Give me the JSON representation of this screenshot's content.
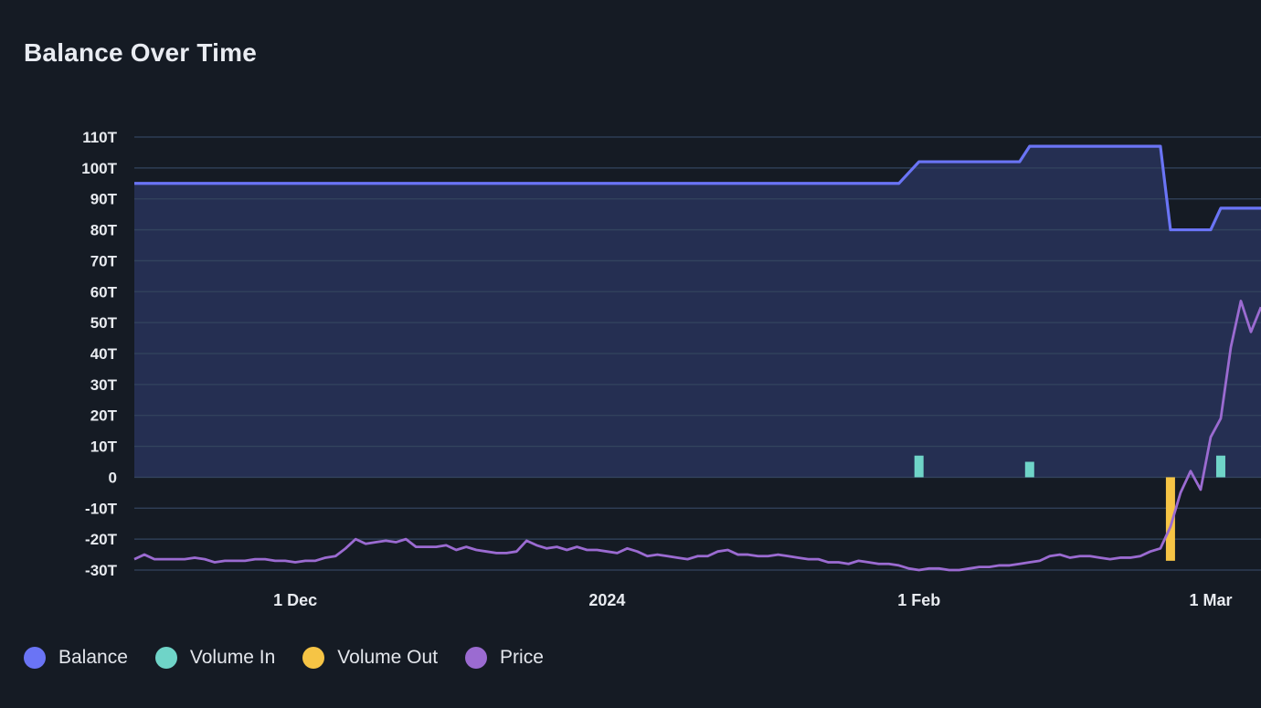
{
  "title": "Balance Over Time",
  "legend": [
    {
      "label": "Balance",
      "color": "#6a74f5"
    },
    {
      "label": "Volume In",
      "color": "#6fd4c8"
    },
    {
      "label": "Volume Out",
      "color": "#f6c445"
    },
    {
      "label": "Price",
      "color": "#9b6bd1"
    }
  ],
  "chart_data": {
    "type": "line",
    "title": "Balance Over Time",
    "xlabel": "",
    "ylabel": "",
    "ylim": [
      -30,
      110
    ],
    "y_ticks": [
      "110T",
      "100T",
      "90T",
      "80T",
      "70T",
      "60T",
      "50T",
      "40T",
      "30T",
      "20T",
      "10T",
      "0",
      "-10T",
      "-20T",
      "-30T"
    ],
    "x_ticks": [
      "1 Dec",
      "2024",
      "1 Feb",
      "1 Mar"
    ],
    "x_tick_dates": [
      "2023-12-01",
      "2024-01-01",
      "2024-02-01",
      "2024-03-01"
    ],
    "xlim": [
      "2023-11-15",
      "2024-03-06"
    ],
    "grid": true,
    "legend_position": "bottom-left",
    "series": [
      {
        "name": "Balance",
        "type": "area",
        "color": "#6a74f5",
        "points": [
          [
            "2023-11-15",
            95
          ],
          [
            "2024-01-30",
            95
          ],
          [
            "2024-02-01",
            102
          ],
          [
            "2024-02-11",
            102
          ],
          [
            "2024-02-12",
            107
          ],
          [
            "2024-02-25",
            107
          ],
          [
            "2024-02-26",
            80
          ],
          [
            "2024-03-01",
            80
          ],
          [
            "2024-03-02",
            87
          ],
          [
            "2024-03-06",
            87
          ]
        ]
      },
      {
        "name": "Volume In",
        "type": "bar",
        "color": "#6fd4c8",
        "points": [
          [
            "2024-02-01",
            7
          ],
          [
            "2024-02-12",
            5
          ],
          [
            "2024-03-02",
            7
          ]
        ]
      },
      {
        "name": "Volume Out",
        "type": "bar",
        "color": "#f6c445",
        "points": [
          [
            "2024-02-26",
            -27
          ]
        ]
      },
      {
        "name": "Price",
        "type": "line",
        "color": "#9b6bd1",
        "points": [
          [
            "2023-11-15",
            -26.5
          ],
          [
            "2023-11-16",
            -25
          ],
          [
            "2023-11-17",
            -26.5
          ],
          [
            "2023-11-18",
            -26.5
          ],
          [
            "2023-11-19",
            -26.5
          ],
          [
            "2023-11-20",
            -26.5
          ],
          [
            "2023-11-21",
            -26
          ],
          [
            "2023-11-22",
            -26.5
          ],
          [
            "2023-11-23",
            -27.5
          ],
          [
            "2023-11-24",
            -27
          ],
          [
            "2023-11-25",
            -27
          ],
          [
            "2023-11-26",
            -27
          ],
          [
            "2023-11-27",
            -26.5
          ],
          [
            "2023-11-28",
            -26.5
          ],
          [
            "2023-11-29",
            -27
          ],
          [
            "2023-11-30",
            -27
          ],
          [
            "2023-12-01",
            -27.5
          ],
          [
            "2023-12-02",
            -27
          ],
          [
            "2023-12-03",
            -27
          ],
          [
            "2023-12-04",
            -26
          ],
          [
            "2023-12-05",
            -25.5
          ],
          [
            "2023-12-06",
            -23
          ],
          [
            "2023-12-07",
            -20
          ],
          [
            "2023-12-08",
            -21.5
          ],
          [
            "2023-12-09",
            -21
          ],
          [
            "2023-12-10",
            -20.5
          ],
          [
            "2023-12-11",
            -21
          ],
          [
            "2023-12-12",
            -20
          ],
          [
            "2023-12-13",
            -22.5
          ],
          [
            "2023-12-14",
            -22.5
          ],
          [
            "2023-12-15",
            -22.5
          ],
          [
            "2023-12-16",
            -22
          ],
          [
            "2023-12-17",
            -23.5
          ],
          [
            "2023-12-18",
            -22.5
          ],
          [
            "2023-12-19",
            -23.5
          ],
          [
            "2023-12-20",
            -24
          ],
          [
            "2023-12-21",
            -24.5
          ],
          [
            "2023-12-22",
            -24.5
          ],
          [
            "2023-12-23",
            -24
          ],
          [
            "2023-12-24",
            -20.5
          ],
          [
            "2023-12-25",
            -22
          ],
          [
            "2023-12-26",
            -23
          ],
          [
            "2023-12-27",
            -22.5
          ],
          [
            "2023-12-28",
            -23.5
          ],
          [
            "2023-12-29",
            -22.5
          ],
          [
            "2023-12-30",
            -23.5
          ],
          [
            "2023-12-31",
            -23.5
          ],
          [
            "2024-01-01",
            -24
          ],
          [
            "2024-01-02",
            -24.5
          ],
          [
            "2024-01-03",
            -23
          ],
          [
            "2024-01-04",
            -24
          ],
          [
            "2024-01-05",
            -25.5
          ],
          [
            "2024-01-06",
            -25
          ],
          [
            "2024-01-07",
            -25.5
          ],
          [
            "2024-01-08",
            -26
          ],
          [
            "2024-01-09",
            -26.5
          ],
          [
            "2024-01-10",
            -25.5
          ],
          [
            "2024-01-11",
            -25.5
          ],
          [
            "2024-01-12",
            -24
          ],
          [
            "2024-01-13",
            -23.5
          ],
          [
            "2024-01-14",
            -25
          ],
          [
            "2024-01-15",
            -25
          ],
          [
            "2024-01-16",
            -25.5
          ],
          [
            "2024-01-17",
            -25.5
          ],
          [
            "2024-01-18",
            -25
          ],
          [
            "2024-01-19",
            -25.5
          ],
          [
            "2024-01-20",
            -26
          ],
          [
            "2024-01-21",
            -26.5
          ],
          [
            "2024-01-22",
            -26.5
          ],
          [
            "2024-01-23",
            -27.5
          ],
          [
            "2024-01-24",
            -27.5
          ],
          [
            "2024-01-25",
            -28
          ],
          [
            "2024-01-26",
            -27
          ],
          [
            "2024-01-27",
            -27.5
          ],
          [
            "2024-01-28",
            -28
          ],
          [
            "2024-01-29",
            -28
          ],
          [
            "2024-01-30",
            -28.5
          ],
          [
            "2024-01-31",
            -29.5
          ],
          [
            "2024-02-01",
            -30
          ],
          [
            "2024-02-02",
            -29.5
          ],
          [
            "2024-02-03",
            -29.5
          ],
          [
            "2024-02-04",
            -30
          ],
          [
            "2024-02-05",
            -30
          ],
          [
            "2024-02-06",
            -29.5
          ],
          [
            "2024-02-07",
            -29
          ],
          [
            "2024-02-08",
            -29
          ],
          [
            "2024-02-09",
            -28.5
          ],
          [
            "2024-02-10",
            -28.5
          ],
          [
            "2024-02-11",
            -28
          ],
          [
            "2024-02-12",
            -27.5
          ],
          [
            "2024-02-13",
            -27
          ],
          [
            "2024-02-14",
            -25.5
          ],
          [
            "2024-02-15",
            -25
          ],
          [
            "2024-02-16",
            -26
          ],
          [
            "2024-02-17",
            -25.5
          ],
          [
            "2024-02-18",
            -25.5
          ],
          [
            "2024-02-19",
            -26
          ],
          [
            "2024-02-20",
            -26.5
          ],
          [
            "2024-02-21",
            -26
          ],
          [
            "2024-02-22",
            -26
          ],
          [
            "2024-02-23",
            -25.5
          ],
          [
            "2024-02-24",
            -24
          ],
          [
            "2024-02-25",
            -23
          ],
          [
            "2024-02-26",
            -16
          ],
          [
            "2024-02-27",
            -5
          ],
          [
            "2024-02-28",
            2
          ],
          [
            "2024-02-29",
            -4
          ],
          [
            "2024-03-01",
            13
          ],
          [
            "2024-03-02",
            19
          ],
          [
            "2024-03-03",
            42
          ],
          [
            "2024-03-04",
            57
          ],
          [
            "2024-03-05",
            47
          ],
          [
            "2024-03-06",
            55
          ]
        ]
      }
    ]
  }
}
